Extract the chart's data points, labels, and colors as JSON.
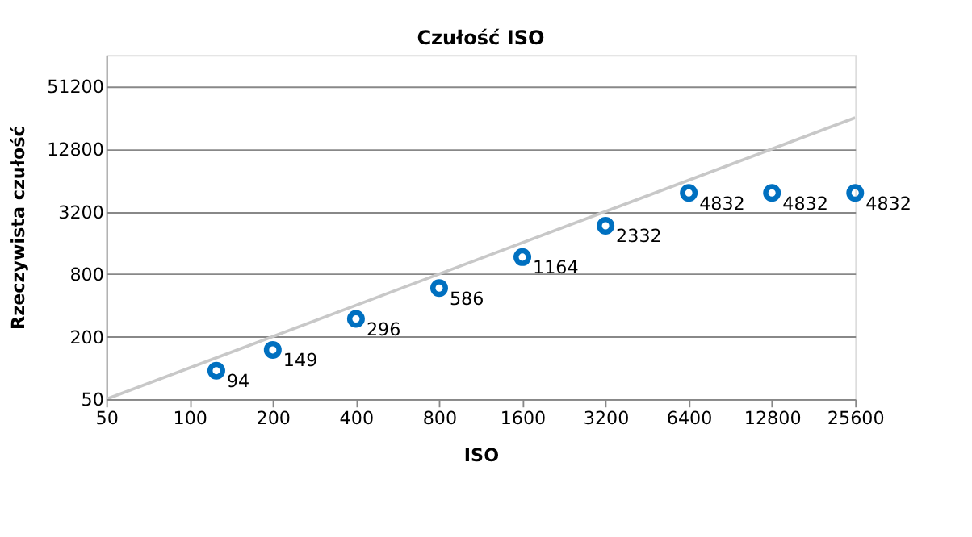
{
  "chart_data": {
    "type": "scatter",
    "title": "Czułość ISO",
    "xlabel": "ISO",
    "ylabel": "Rzeczywista czułość",
    "x": [
      125,
      200,
      400,
      800,
      1600,
      3200,
      6400,
      12800,
      25600
    ],
    "series": [
      {
        "color": "#0070c0",
        "values": [
          94,
          149,
          296,
          586,
          1164,
          2332,
          4832,
          4832,
          4832
        ],
        "value_labels": [
          "94",
          "149",
          "296",
          "586",
          "1164",
          "2332",
          "4832",
          "4832",
          "4832"
        ]
      },
      {
        "type": "line",
        "color": "#c8c8c8",
        "x": [
          50,
          25600
        ],
        "values": [
          50,
          25600
        ],
        "marker": "none"
      }
    ],
    "log": "xy",
    "xlim": [
      50,
      25600
    ],
    "ylim": [
      50,
      102400
    ],
    "xticks": [
      50,
      100,
      200,
      400,
      800,
      1600,
      3200,
      6400,
      12800,
      25600
    ],
    "yticks": [
      50,
      200,
      800,
      3200,
      12800,
      51200
    ],
    "grid": "y",
    "marker": "circle"
  }
}
